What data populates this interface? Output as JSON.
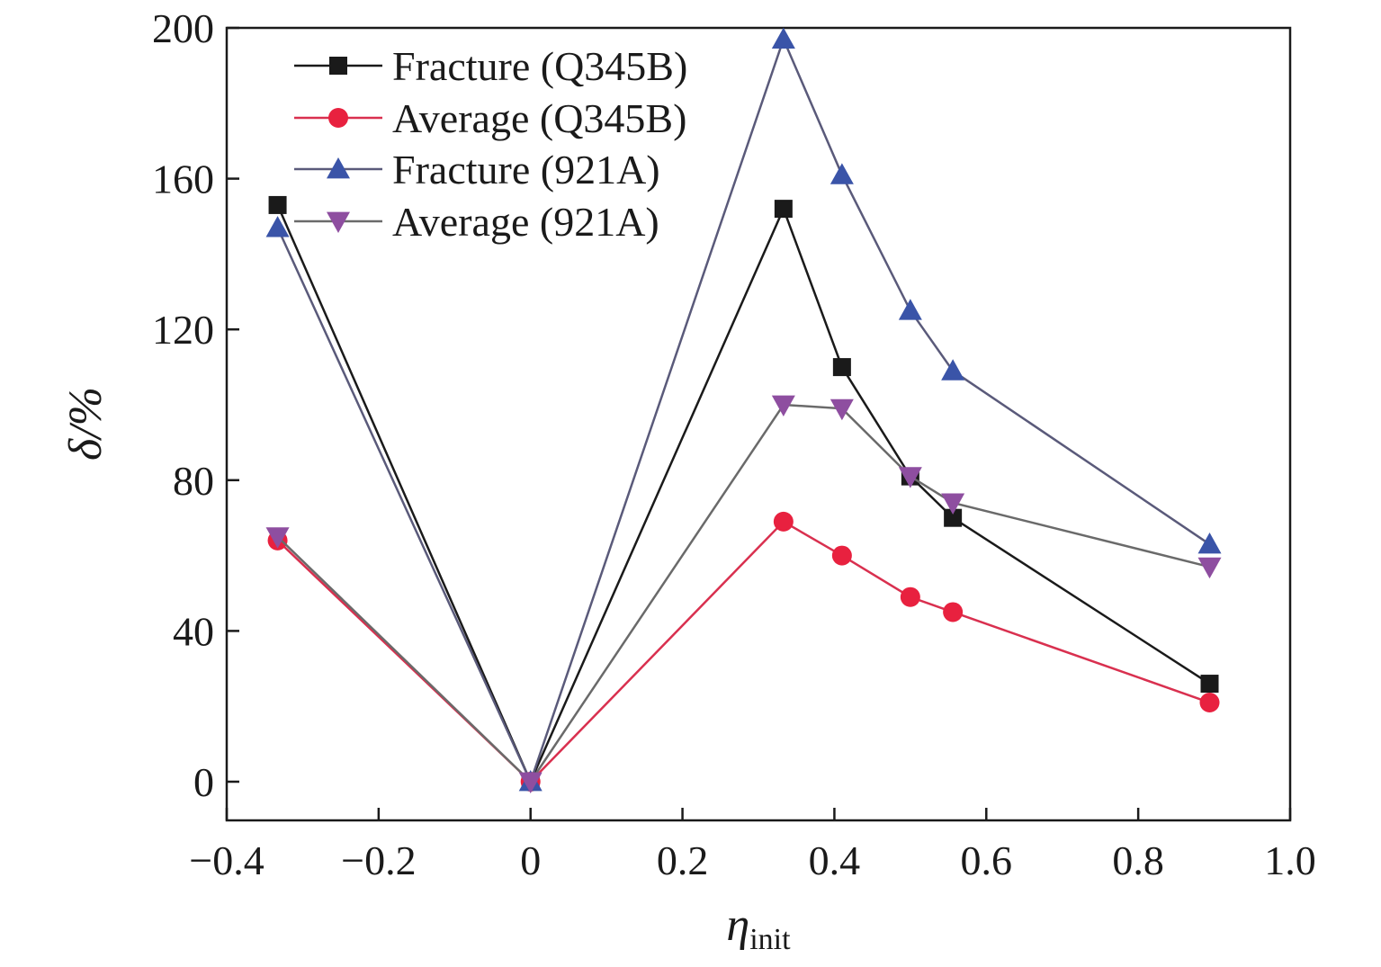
{
  "chart_data": {
    "type": "line",
    "xlabel": "η",
    "xlabel_subscript": "init",
    "ylabel": "δ/%",
    "xlim": [
      -0.4,
      1.0
    ],
    "ylim": [
      -10,
      200
    ],
    "x_ticks": [
      -0.4,
      -0.2,
      0,
      0.2,
      0.4,
      0.6,
      0.8,
      1.0
    ],
    "x_tick_labels": [
      "−0.4",
      "−0.2",
      "0",
      "0.2",
      "0.4",
      "0.6",
      "0.8",
      "1.0"
    ],
    "y_ticks": [
      0,
      40,
      80,
      120,
      160,
      200
    ],
    "y_tick_labels": [
      "0",
      "40",
      "80",
      "120",
      "160",
      "200"
    ],
    "grid": false,
    "legend_position": "top-left",
    "series": [
      {
        "name": "Fracture (Q345B)",
        "color": "#1a1a1a",
        "marker": "square",
        "x": [
          -0.333,
          0,
          0.333,
          0.41,
          0.5,
          0.556,
          0.894
        ],
        "y": [
          153,
          0,
          152,
          110,
          81,
          70,
          26
        ]
      },
      {
        "name": "Average (Q345B)",
        "color": "#e8213f",
        "line_color": "#d9304f",
        "marker": "circle",
        "x": [
          -0.333,
          0,
          0.333,
          0.41,
          0.5,
          0.556,
          0.894
        ],
        "y": [
          64,
          0,
          69,
          60,
          49,
          45,
          21
        ]
      },
      {
        "name": "Fracture (921A)",
        "color": "#3a54a8",
        "line_color": "#5a5a7a",
        "marker": "triangle-up",
        "x": [
          -0.333,
          0,
          0.333,
          0.41,
          0.5,
          0.556,
          0.894
        ],
        "y": [
          147,
          0,
          197,
          161,
          125,
          109,
          63
        ]
      },
      {
        "name": "Average (921A)",
        "color": "#8e4ea0",
        "line_color": "#6a6a6a",
        "marker": "triangle-down",
        "x": [
          -0.333,
          0,
          0.333,
          0.41,
          0.5,
          0.556,
          0.894
        ],
        "y": [
          65,
          0,
          100,
          99,
          81,
          74,
          57
        ]
      }
    ]
  }
}
